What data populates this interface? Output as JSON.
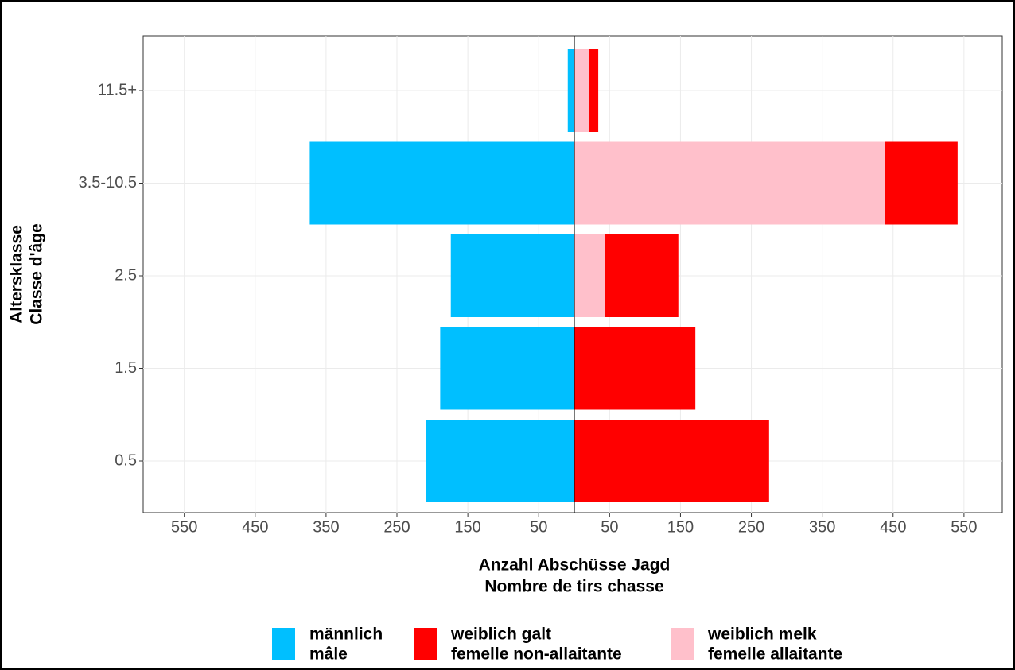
{
  "chart_data": {
    "type": "pyramid",
    "x_label": [
      "Anzahl Abschüsse Jagd",
      "Nombre de tirs chasse"
    ],
    "y_label": [
      "Altersklasse",
      "Classe d'âge"
    ],
    "categories": [
      "0.5",
      "1.5",
      "2.5",
      "3.5-10.5",
      "11.5+"
    ],
    "series": [
      {
        "name": [
          "männlich",
          "mâle"
        ],
        "color": "#00bfff",
        "values": [
          -209,
          -189,
          -174,
          -373,
          -9
        ]
      },
      {
        "name": [
          "weiblich galt",
          "femelle non-allaitante"
        ],
        "color": "#ff0000",
        "values": [
          275,
          171,
          104,
          103,
          13
        ]
      },
      {
        "name": [
          "weiblich melk",
          "femelle allaitante"
        ],
        "color": "#ffc0cb",
        "values": [
          0,
          0,
          43,
          438,
          21
        ]
      }
    ],
    "xlim": [
      -608,
      604
    ],
    "xticks": [
      {
        "value": -550,
        "label": "550"
      },
      {
        "value": -450,
        "label": "450"
      },
      {
        "value": -350,
        "label": "350"
      },
      {
        "value": -250,
        "label": "250"
      },
      {
        "value": -150,
        "label": "150"
      },
      {
        "value": -50,
        "label": "50"
      },
      50,
      150,
      250,
      350,
      450,
      550
    ],
    "grid": true,
    "legend": "bottom"
  }
}
